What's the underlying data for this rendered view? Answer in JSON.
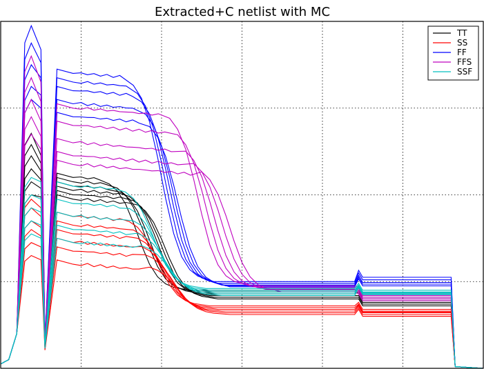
{
  "chart_data": {
    "type": "line",
    "title": "Extracted+C netlist with MC",
    "xlabel": "",
    "ylabel": "",
    "xlim": [
      0,
      6
    ],
    "ylim": [
      0,
      4
    ],
    "grid": true,
    "legend_position": "top-right",
    "xticks": [
      1,
      2,
      3,
      4,
      5
    ],
    "yticks": [
      1,
      2,
      3
    ],
    "series": [
      {
        "name": "TT",
        "color": "#000000",
        "runs": [
          {
            "peak": 2.71,
            "plateau": 2.2,
            "knee": 1.25,
            "drop": 0.28,
            "mid": 0.9,
            "final": 0.82
          },
          {
            "peak": 2.58,
            "plateau": 2.15,
            "knee": 1.35,
            "drop": 0.27,
            "mid": 0.88,
            "final": 0.78
          },
          {
            "peak": 2.45,
            "plateau": 2.1,
            "knee": 1.4,
            "drop": 0.26,
            "mid": 0.86,
            "final": 0.8
          },
          {
            "peak": 2.3,
            "plateau": 2.05,
            "knee": 1.5,
            "drop": 0.25,
            "mid": 0.84,
            "final": 0.76
          },
          {
            "peak": 2.15,
            "plateau": 2.0,
            "knee": 1.55,
            "drop": 0.24,
            "mid": 0.82,
            "final": 0.74
          },
          {
            "peak": 2.0,
            "plateau": 1.95,
            "knee": 1.6,
            "drop": 0.23,
            "mid": 0.8,
            "final": 0.72
          }
        ]
      },
      {
        "name": "SS",
        "color": "#ff0000",
        "runs": [
          {
            "peak": 1.95,
            "plateau": 1.75,
            "knee": 1.5,
            "drop": 0.26,
            "mid": 0.72,
            "final": 0.68
          },
          {
            "peak": 1.85,
            "plateau": 1.65,
            "knee": 1.55,
            "drop": 0.25,
            "mid": 0.7,
            "final": 0.66
          },
          {
            "peak": 1.7,
            "plateau": 1.55,
            "knee": 1.6,
            "drop": 0.24,
            "mid": 0.68,
            "final": 0.65
          },
          {
            "peak": 1.6,
            "plateau": 1.45,
            "knee": 1.65,
            "drop": 0.23,
            "mid": 0.66,
            "final": 0.64
          },
          {
            "peak": 1.45,
            "plateau": 1.35,
            "knee": 1.7,
            "drop": 0.22,
            "mid": 0.64,
            "final": 0.62
          },
          {
            "peak": 1.3,
            "plateau": 1.2,
            "knee": 1.75,
            "drop": 0.21,
            "mid": 0.62,
            "final": 0.6
          }
        ]
      },
      {
        "name": "FF",
        "color": "#0000ff",
        "runs": [
          {
            "peak": 3.95,
            "plateau": 3.4,
            "knee": 1.55,
            "drop": 0.3,
            "mid": 1.0,
            "final": 1.05
          },
          {
            "peak": 3.75,
            "plateau": 3.3,
            "knee": 1.6,
            "drop": 0.29,
            "mid": 0.98,
            "final": 1.02
          },
          {
            "peak": 3.5,
            "plateau": 3.2,
            "knee": 1.65,
            "drop": 0.28,
            "mid": 0.96,
            "final": 0.99
          },
          {
            "peak": 3.25,
            "plateau": 3.05,
            "knee": 1.7,
            "drop": 0.27,
            "mid": 0.95,
            "final": 0.97
          },
          {
            "peak": 3.1,
            "plateau": 2.9,
            "knee": 1.75,
            "drop": 0.26,
            "mid": 0.94,
            "final": 0.95
          }
        ]
      },
      {
        "name": "FFS",
        "color": "#bf00bf",
        "runs": [
          {
            "peak": 3.6,
            "plateau": 3.0,
            "knee": 2.0,
            "drop": 0.3,
            "mid": 0.95,
            "final": 0.86
          },
          {
            "peak": 3.35,
            "plateau": 2.8,
            "knee": 2.1,
            "drop": 0.29,
            "mid": 0.93,
            "final": 0.84
          },
          {
            "peak": 3.1,
            "plateau": 2.6,
            "knee": 2.2,
            "drop": 0.28,
            "mid": 0.91,
            "final": 0.82
          },
          {
            "peak": 2.9,
            "plateau": 2.45,
            "knee": 2.3,
            "drop": 0.27,
            "mid": 0.9,
            "final": 0.8
          },
          {
            "peak": 2.7,
            "plateau": 2.35,
            "knee": 2.4,
            "drop": 0.26,
            "mid": 0.88,
            "final": 0.78
          }
        ]
      },
      {
        "name": "SSF",
        "color": "#00bfbf",
        "runs": [
          {
            "peak": 2.2,
            "plateau": 2.1,
            "knee": 1.45,
            "drop": 0.27,
            "mid": 0.92,
            "final": 0.9
          },
          {
            "peak": 2.0,
            "plateau": 1.9,
            "knee": 1.5,
            "drop": 0.26,
            "mid": 0.9,
            "final": 0.88
          },
          {
            "peak": 1.85,
            "plateau": 1.75,
            "knee": 1.55,
            "drop": 0.25,
            "mid": 0.88,
            "final": 0.87
          },
          {
            "peak": 1.7,
            "plateau": 1.6,
            "knee": 1.6,
            "drop": 0.24,
            "mid": 0.86,
            "final": 0.86
          },
          {
            "peak": 1.55,
            "plateau": 1.45,
            "knee": 1.65,
            "drop": 0.23,
            "mid": 0.84,
            "final": 0.85
          }
        ]
      }
    ]
  }
}
